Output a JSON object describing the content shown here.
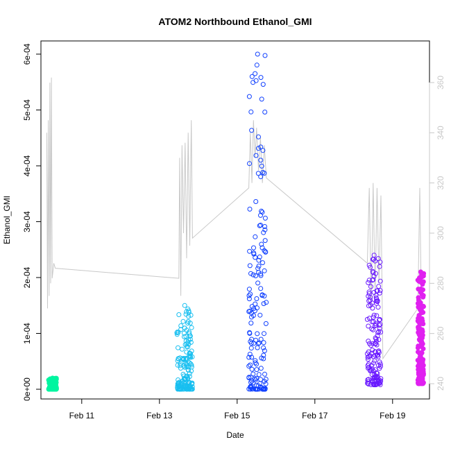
{
  "chart_data": {
    "type": "scatter",
    "title": "ATOM2 Northbound Ethanol_GMI",
    "xlabel": "Date",
    "ylabel": "Ethanol_GMI",
    "x_ticks": [
      "Feb 11",
      "Feb 13",
      "Feb 15",
      "Feb 17",
      "Feb 19"
    ],
    "x_range_days": [
      9.95,
      19.95
    ],
    "y_ticks": [
      "0e+00",
      "1e-04",
      "2e-04",
      "3e-04",
      "4e-04",
      "5e-04",
      "6e-04"
    ],
    "ylim": [
      0.0,
      0.0006
    ],
    "y2_ticks": [
      "240",
      "260",
      "280",
      "300",
      "320",
      "340",
      "360"
    ],
    "y2lim": [
      237,
      367
    ],
    "grid": false,
    "legend": "none",
    "secondary_line_color": "#c8c8c8",
    "clusters": [
      {
        "x_start": 10.15,
        "x_end": 10.35,
        "y_min": 0.0,
        "y_max": 2e-05,
        "color": "#00f5a0",
        "filled": true
      },
      {
        "x_start": 13.45,
        "x_end": 13.85,
        "y_min": 0.0,
        "y_max": 0.00015,
        "color": "#18bff0",
        "filled": false
      },
      {
        "x_start": 15.3,
        "x_end": 15.75,
        "y_min": 0.0,
        "y_max": 0.0006,
        "color": "#1040ff",
        "filled": false
      },
      {
        "x_start": 18.35,
        "x_end": 18.7,
        "y_min": 8e-06,
        "y_max": 0.00024,
        "color": "#6a1aff",
        "filled": false
      },
      {
        "x_start": 19.65,
        "x_end": 19.8,
        "y_min": 1e-05,
        "y_max": 0.00021,
        "color": "#e020f0",
        "filled": true
      }
    ],
    "secondary_series": {
      "name": "",
      "x": [
        10.1,
        10.12,
        10.14,
        10.16,
        10.18,
        10.2,
        10.22,
        10.24,
        10.26,
        10.28,
        10.3,
        10.32,
        13.5,
        13.52,
        13.55,
        13.58,
        13.62,
        13.66,
        13.7,
        13.74,
        13.78,
        13.82,
        13.85,
        15.3,
        15.34,
        15.38,
        15.42,
        15.46,
        15.5,
        15.55,
        15.6,
        15.65,
        15.7,
        15.75,
        18.35,
        18.4,
        18.45,
        18.5,
        18.55,
        18.6,
        18.65,
        18.7,
        18.75,
        19.65,
        19.7,
        19.75
      ],
      "y": [
        340,
        270,
        345,
        275,
        360,
        280,
        362,
        282,
        285,
        288,
        287,
        286,
        282,
        330,
        275,
        335,
        300,
        336,
        290,
        340,
        295,
        345,
        298,
        318,
        340,
        320,
        345,
        330,
        342,
        325,
        338,
        320,
        335,
        322,
        288,
        318,
        270,
        320,
        275,
        318,
        280,
        315,
        250,
        270,
        318,
        260
      ]
    }
  }
}
